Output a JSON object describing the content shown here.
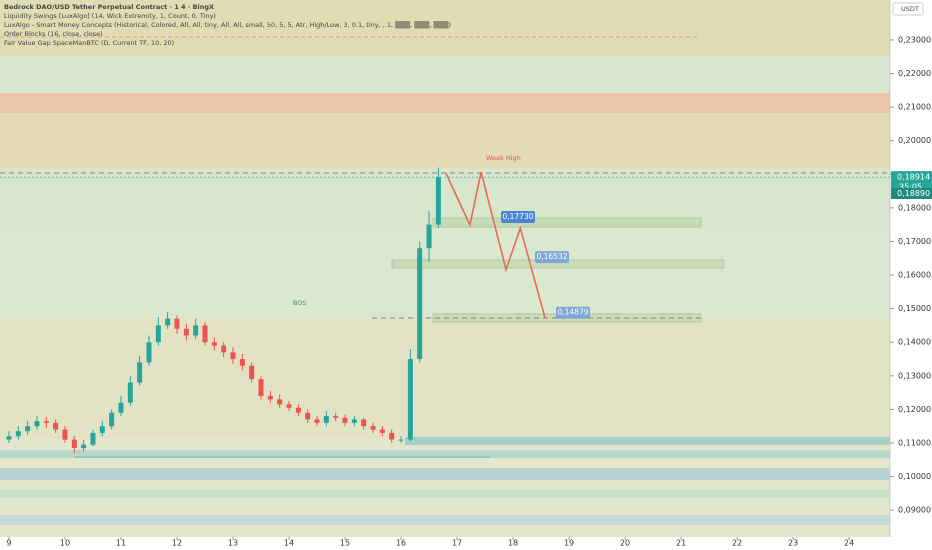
{
  "header": {
    "title": "Bedrock DAO/USD Tether Perpetual Contract · 1 4 · BingX",
    "indicators": [
      "Liquidity Swings [LuxAlgo] (14, Wick Extremity, 1, Count, 0, Tiny)",
      "LuxAlgo - Smart Money Concepts (Historical, Colored, All, All, tiny, All, All, small, 50, 5, 5, Atr, High/Low, 3, 0.1, tiny, , 1, ▒▒▒, ▒▒▒, ▒▒▒)",
      "Order Blocks (16, close, close)",
      "Fair Value Gap SpaceManBTC (D, Current TF, 10, 20)"
    ],
    "currency": "USDT"
  },
  "chart_data": {
    "type": "candlestick",
    "x": [
      9.0,
      9.167,
      9.333,
      9.5,
      9.667,
      9.833,
      10.0,
      10.167,
      10.333,
      10.5,
      10.667,
      10.833,
      11.0,
      11.167,
      11.333,
      11.5,
      11.667,
      11.833,
      12.0,
      12.167,
      12.333,
      12.5,
      12.667,
      12.833,
      13.0,
      13.167,
      13.333,
      13.5,
      13.667,
      13.833,
      14.0,
      14.167,
      14.333,
      14.5,
      14.667,
      14.833,
      15.0,
      15.167,
      15.333,
      15.5,
      15.667,
      15.833,
      16.0,
      16.167,
      16.333,
      16.5,
      16.667
    ],
    "open": [
      0.111,
      0.112,
      0.1135,
      0.115,
      0.1165,
      0.116,
      0.114,
      0.111,
      0.1085,
      0.1095,
      0.113,
      0.115,
      0.119,
      0.122,
      0.128,
      0.134,
      0.14,
      0.145,
      0.147,
      0.144,
      0.142,
      0.145,
      0.14,
      0.139,
      0.137,
      0.135,
      0.133,
      0.129,
      0.124,
      0.123,
      0.1215,
      0.1205,
      0.119,
      0.117,
      0.116,
      0.118,
      0.1175,
      0.116,
      0.117,
      0.115,
      0.114,
      0.113,
      0.111,
      0.111,
      0.135,
      0.168,
      0.175
    ],
    "high": [
      0.1135,
      0.115,
      0.1165,
      0.118,
      0.1178,
      0.117,
      0.115,
      0.112,
      0.111,
      0.114,
      0.1165,
      0.12,
      0.124,
      0.13,
      0.136,
      0.142,
      0.1475,
      0.149,
      0.148,
      0.1455,
      0.147,
      0.146,
      0.1415,
      0.14,
      0.1385,
      0.1365,
      0.134,
      0.13,
      0.1255,
      0.1245,
      0.1225,
      0.1215,
      0.12,
      0.118,
      0.1195,
      0.119,
      0.1185,
      0.118,
      0.1175,
      0.116,
      0.115,
      0.114,
      0.112,
      0.138,
      0.17,
      0.179,
      0.192
    ],
    "low": [
      0.11,
      0.111,
      0.1125,
      0.114,
      0.1145,
      0.113,
      0.11,
      0.107,
      0.1075,
      0.109,
      0.112,
      0.114,
      0.118,
      0.121,
      0.127,
      0.133,
      0.139,
      0.144,
      0.1425,
      0.1405,
      0.141,
      0.139,
      0.1375,
      0.1355,
      0.1335,
      0.1315,
      0.128,
      0.123,
      0.122,
      0.1205,
      0.1195,
      0.118,
      0.116,
      0.115,
      0.115,
      0.1165,
      0.115,
      0.115,
      0.114,
      0.113,
      0.112,
      0.11,
      0.11,
      0.1105,
      0.134,
      0.164,
      0.174
    ],
    "close": [
      0.112,
      0.1135,
      0.115,
      0.1165,
      0.116,
      0.114,
      0.111,
      0.1085,
      0.1095,
      0.113,
      0.115,
      0.119,
      0.122,
      0.128,
      0.134,
      0.14,
      0.145,
      0.147,
      0.144,
      0.142,
      0.145,
      0.14,
      0.139,
      0.137,
      0.135,
      0.133,
      0.129,
      0.124,
      0.123,
      0.1215,
      0.1205,
      0.119,
      0.117,
      0.116,
      0.118,
      0.1175,
      0.116,
      0.117,
      0.115,
      0.114,
      0.113,
      0.111,
      0.111,
      0.135,
      0.168,
      0.175,
      0.1891
    ],
    "up_color": "#26a69a",
    "down_color": "#ef5350",
    "projection": {
      "color": "#e8695a",
      "x": [
        16.8,
        17.23,
        17.43,
        17.875,
        18.13,
        18.57
      ],
      "y": [
        0.1904,
        0.1749,
        0.1907,
        0.1616,
        0.174,
        0.1473
      ]
    },
    "price_tags": [
      {
        "value": 0.1773,
        "label": "0,17730"
      },
      {
        "value": 0.16532,
        "label": "0,16532"
      },
      {
        "value": 0.14879,
        "label": "0,14879"
      }
    ],
    "last_price": {
      "value": 0.18914,
      "label": "0,18914"
    },
    "countdown": "35:05",
    "bid_price": {
      "value": 0.1889,
      "label": "0,18890"
    },
    "annotations": [
      "BOS",
      "Weak High"
    ],
    "xlim": [
      8.84,
      24.73
    ],
    "xticks": [
      9,
      10,
      11,
      12,
      13,
      14,
      15,
      16,
      17,
      18,
      19,
      20,
      21,
      22,
      23,
      24
    ],
    "ylim": [
      0.082,
      0.2419
    ],
    "yticks": [
      {
        "value": 0.09,
        "label": "0,09000"
      },
      {
        "value": 0.1,
        "label": "0,10000"
      },
      {
        "value": 0.11,
        "label": "0,11000"
      },
      {
        "value": 0.12,
        "label": "0,12000"
      },
      {
        "value": 0.13,
        "label": "0,13000"
      },
      {
        "value": 0.14,
        "label": "0,14000"
      },
      {
        "value": 0.15,
        "label": "0,15000"
      },
      {
        "value": 0.16,
        "label": "0,16000"
      },
      {
        "value": 0.17,
        "label": "0,17000"
      },
      {
        "value": 0.18,
        "label": "0,18000"
      },
      {
        "value": 0.19,
        "label": "0,19000"
      },
      {
        "value": 0.2,
        "label": "0,20000"
      },
      {
        "value": 0.21,
        "label": "0,21000"
      },
      {
        "value": 0.22,
        "label": "0,22000"
      },
      {
        "value": 0.23,
        "label": "0,23000"
      }
    ]
  }
}
